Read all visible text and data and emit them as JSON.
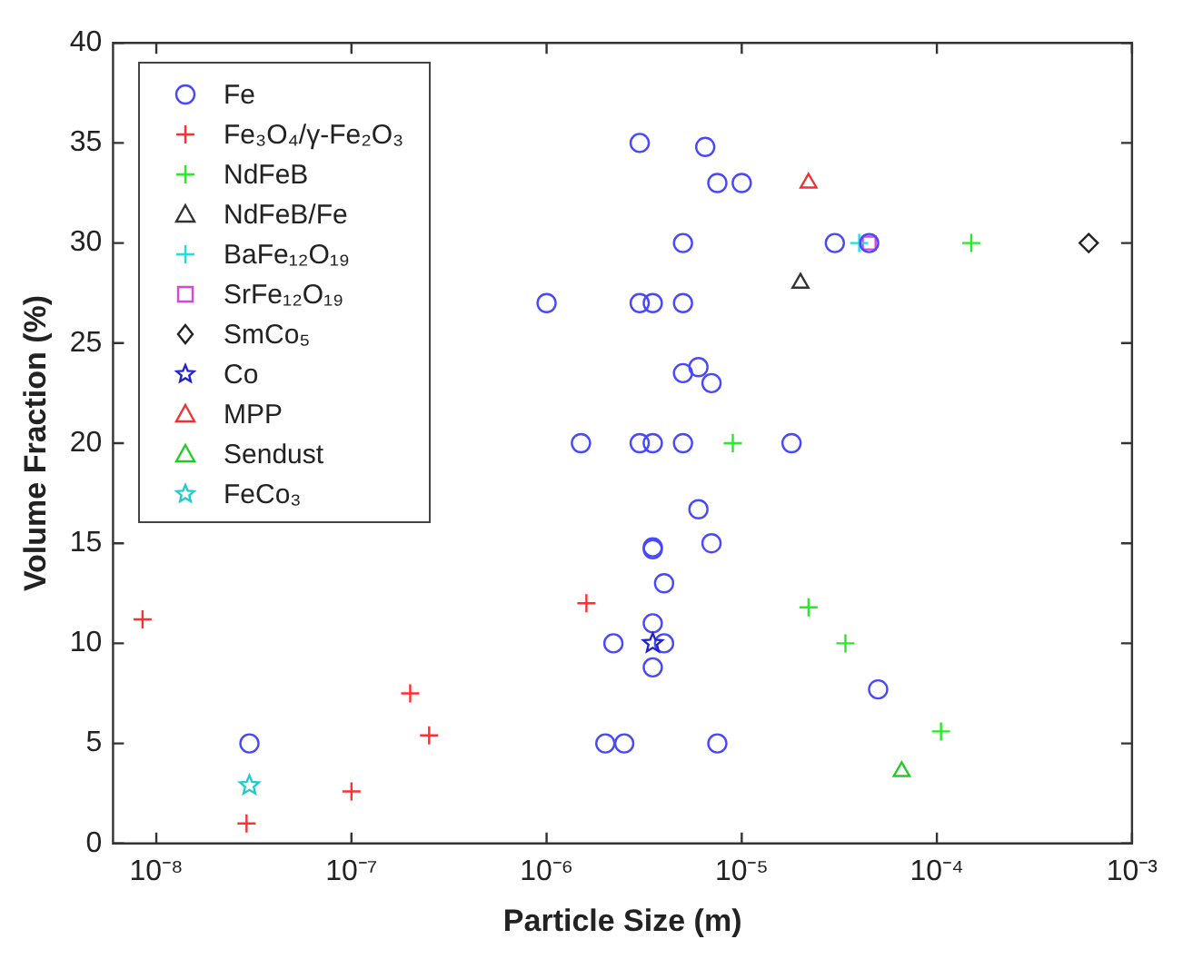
{
  "chart_data": {
    "type": "scatter",
    "xlabel": "Particle Size (m)",
    "ylabel": "Volume Fraction (%)",
    "log": "x",
    "grid": false,
    "legend": "top left",
    "xlim": [
      6e-09,
      0.001
    ],
    "xticks": [
      {
        "value": 1e-08,
        "label": "10⁻⁸"
      },
      {
        "value": 1e-07,
        "label": "10⁻⁷"
      },
      {
        "value": 1e-06,
        "label": "10⁻⁶"
      },
      {
        "value": 1e-05,
        "label": "10⁻⁵"
      },
      {
        "value": 0.0001,
        "label": "10⁻⁴"
      },
      {
        "value": 0.001,
        "label": "10⁻³"
      }
    ],
    "ylim": [
      0,
      40
    ],
    "yticks": [
      0,
      5,
      10,
      15,
      20,
      25,
      30,
      35,
      40
    ],
    "series": [
      {
        "name": "Fe",
        "color": "#4848ff",
        "marker": "circle",
        "x": [
          3e-08,
          1e-06,
          1.5e-06,
          3e-06,
          6.5e-06,
          7.5e-06,
          1e-05,
          5e-06,
          3e-05,
          4.5e-05,
          3e-06,
          3.5e-06,
          5e-06,
          5e-06,
          6e-06,
          7e-06,
          3e-06,
          3.5e-06,
          5e-06,
          1.8e-05,
          6e-06,
          3.5e-06,
          3.5e-06,
          7e-06,
          4e-06,
          3.5e-06,
          2.2e-06,
          4e-06,
          3.5e-06,
          5e-05,
          2e-06,
          2.5e-06,
          7.5e-06
        ],
        "values": [
          5,
          27,
          20,
          35,
          34.8,
          33,
          33,
          30,
          30,
          30,
          27,
          27,
          27,
          23.5,
          23.8,
          23,
          20,
          20,
          20,
          20,
          16.7,
          14.8,
          14.7,
          15,
          13,
          11,
          10,
          10,
          8.8,
          7.7,
          5,
          5,
          5
        ]
      },
      {
        "name": "Fe₃O₄/γ-Fe₂O₃",
        "color": "#ff3030",
        "marker": "cross",
        "x": [
          8.5e-09,
          2.9e-08,
          1e-07,
          2e-07,
          2.5e-07,
          1.6e-06
        ],
        "values": [
          11.2,
          1,
          2.6,
          7.5,
          5.4,
          12
        ]
      },
      {
        "name": "NdFeB",
        "color": "#22ee22",
        "marker": "cross",
        "x": [
          9e-06,
          0.00015,
          2.2e-05,
          3.4e-05,
          0.000105
        ],
        "values": [
          20,
          30,
          11.8,
          10,
          5.6
        ]
      },
      {
        "name": "NdFeB/Fe",
        "color": "#333333",
        "marker": "triangle",
        "x": [
          2e-05
        ],
        "values": [
          28
        ]
      },
      {
        "name": "BaFe₁₂O₁₉",
        "color": "#22dddd",
        "marker": "cross",
        "x": [
          4e-05
        ],
        "values": [
          30
        ]
      },
      {
        "name": "SrFe₁₂O₁₉",
        "color": "#dd44dd",
        "marker": "square",
        "x": [
          4.5e-05
        ],
        "values": [
          30
        ]
      },
      {
        "name": "SmCo₅",
        "color": "#222222",
        "marker": "diamond",
        "x": [
          0.0006
        ],
        "values": [
          30
        ]
      },
      {
        "name": "Co",
        "color": "#2222cc",
        "marker": "star",
        "x": [
          3.5e-06
        ],
        "values": [
          10
        ]
      },
      {
        "name": "MPP",
        "color": "#ee3333",
        "marker": "triangle",
        "x": [
          2.2e-05
        ],
        "values": [
          33
        ]
      },
      {
        "name": "Sendust",
        "color": "#22cc22",
        "marker": "triangle",
        "x": [
          6.6e-05
        ],
        "values": [
          3.6
        ]
      },
      {
        "name": "FeCo₃",
        "color": "#22cccc",
        "marker": "star",
        "x": [
          3e-08
        ],
        "values": [
          2.9
        ]
      }
    ]
  }
}
